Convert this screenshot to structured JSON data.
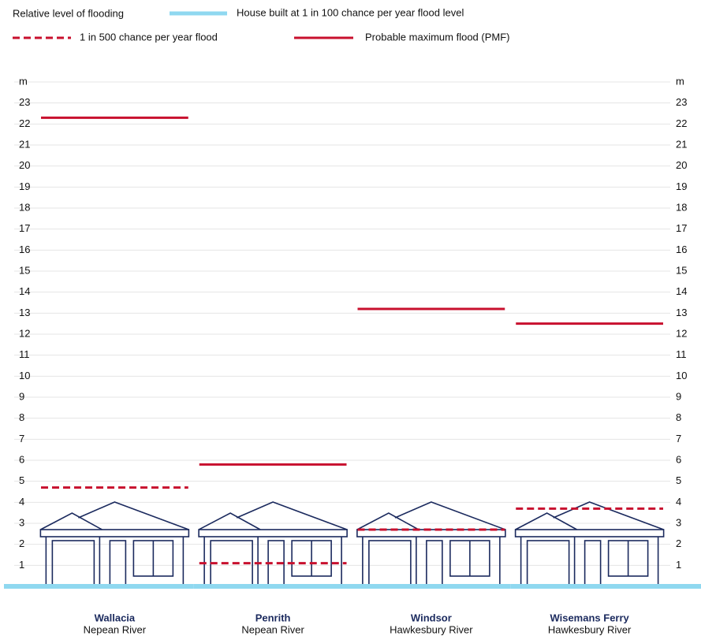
{
  "chart_data": {
    "type": "level",
    "legend_title": "Relative level of flooding",
    "categories": [
      "Wallacia",
      "Penrith",
      "Windsor",
      "Wisemans Ferry"
    ],
    "category_sublabels": [
      "Nepean River",
      "Nepean River",
      "Hawkesbury River",
      "Hawkesbury River"
    ],
    "series": [
      {
        "name": "House built at 1 in 100 chance per year flood level",
        "color": "#8fd8f0",
        "line_style": "solid",
        "values": [
          0,
          0,
          0,
          0
        ]
      },
      {
        "name": "1 in 500 chance per year flood",
        "color": "#c8102e",
        "line_style": "dashed",
        "values": [
          4.7,
          1.1,
          2.7,
          3.7
        ]
      },
      {
        "name": "Probable maximum flood (PMF)",
        "color": "#c8102e",
        "line_style": "solid",
        "values": [
          22.3,
          5.8,
          13.2,
          12.5
        ]
      }
    ],
    "ylim": [
      0,
      24
    ],
    "yticks": [
      1,
      2,
      3,
      4,
      5,
      6,
      7,
      8,
      9,
      10,
      11,
      12,
      13,
      14,
      15,
      16,
      17,
      18,
      19,
      20,
      21,
      22,
      23,
      {
        "value": 24,
        "label": "m"
      }
    ],
    "grid": true
  }
}
